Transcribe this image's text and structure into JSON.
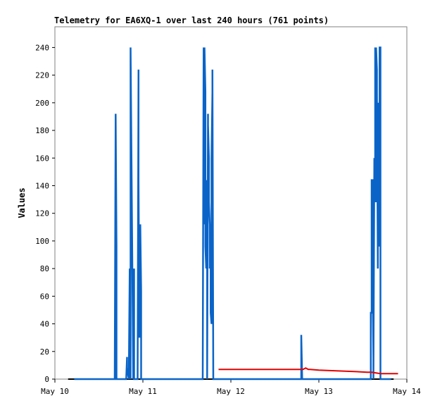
{
  "chart_data": {
    "type": "line",
    "title": "Telemetry for EA6XQ-1 over last 240 hours (761 points)",
    "xlabel": "",
    "ylabel": "Values",
    "x_ticks": [
      "May 10",
      "May 11",
      "May 12",
      "May 13",
      "May 14"
    ],
    "x_ticks_days": [
      0,
      1,
      2,
      3,
      4
    ],
    "xlim_days": [
      0,
      4
    ],
    "ylim": [
      0,
      255
    ],
    "y_ticks": [
      0,
      20,
      40,
      60,
      80,
      100,
      120,
      140,
      160,
      180,
      200,
      220,
      240
    ],
    "grid": false,
    "legend": "none",
    "series": [
      {
        "color": "#0a64c8",
        "x_days": [
          0.22,
          0.68,
          0.69,
          0.7,
          0.7,
          0.81,
          0.82,
          0.82,
          0.84,
          0.85,
          0.86,
          0.86,
          0.89,
          0.9,
          0.9,
          0.94,
          0.95,
          0.95,
          0.96,
          0.96,
          0.97,
          0.97,
          0.98,
          0.98,
          0.99,
          0.99,
          1.0,
          1.0,
          1.68,
          1.69,
          1.69,
          1.7,
          1.7,
          1.71,
          1.71,
          1.72,
          1.72,
          1.73,
          1.73,
          1.74,
          1.74,
          1.75,
          1.75,
          1.76,
          1.76,
          1.77,
          1.77,
          1.78,
          1.78,
          1.79,
          1.79,
          1.8,
          1.8,
          1.81,
          1.81,
          1.82,
          1.82,
          1.83,
          1.83,
          1.84,
          1.84,
          1.85,
          1.85,
          1.86,
          1.86,
          2.8,
          2.8,
          2.81,
          2.81,
          3.59,
          3.59,
          3.6,
          3.6,
          3.61,
          3.61,
          3.62,
          3.62,
          3.63,
          3.63,
          3.64,
          3.64,
          3.65,
          3.65,
          3.66,
          3.66,
          3.67,
          3.67,
          3.68,
          3.68,
          3.69,
          3.69,
          3.7,
          3.7,
          3.71,
          3.71,
          3.72,
          3.72,
          3.73,
          3.73,
          3.74,
          3.74,
          3.75,
          3.75,
          3.76,
          3.76,
          3.77,
          3.77,
          3.78,
          3.78,
          3.79,
          3.79,
          3.8,
          3.82
        ],
        "values": [
          0,
          0,
          192,
          96,
          0,
          0,
          16,
          8,
          0,
          80,
          0,
          240,
          0,
          80,
          0,
          0,
          224,
          144,
          30,
          40,
          48,
          112,
          64,
          0,
          0,
          0,
          0,
          0,
          0,
          240,
          112,
          160,
          240,
          208,
          96,
          80,
          144,
          80,
          0,
          192,
          184,
          160,
          128,
          112,
          80,
          96,
          48,
          40,
          160,
          208,
          224,
          0,
          0,
          0,
          0,
          0,
          0,
          0,
          0,
          0,
          0,
          0,
          0,
          0,
          0,
          0,
          32,
          0,
          0,
          0,
          48,
          48,
          144,
          144,
          72,
          16,
          0,
          160,
          144,
          128,
          240,
          128,
          240,
          224,
          208,
          80,
          192,
          200,
          96,
          112,
          240,
          240,
          0,
          0,
          0,
          0,
          0,
          0,
          0,
          0,
          0,
          0,
          0,
          0,
          0,
          0,
          0,
          0,
          0,
          0,
          0,
          0,
          0
        ]
      },
      {
        "color": "#e60000",
        "x_days": [
          1.86,
          2.0,
          2.2,
          2.4,
          2.6,
          2.75,
          2.82,
          2.85,
          2.88,
          2.9,
          3.0,
          3.2,
          3.4,
          3.55,
          3.6,
          3.65,
          3.7,
          3.8,
          3.9
        ],
        "values": [
          7,
          7,
          7,
          7,
          7,
          7,
          7,
          8,
          7,
          7,
          6.5,
          6,
          5.5,
          5,
          5,
          4.5,
          4,
          4,
          4
        ]
      }
    ]
  }
}
